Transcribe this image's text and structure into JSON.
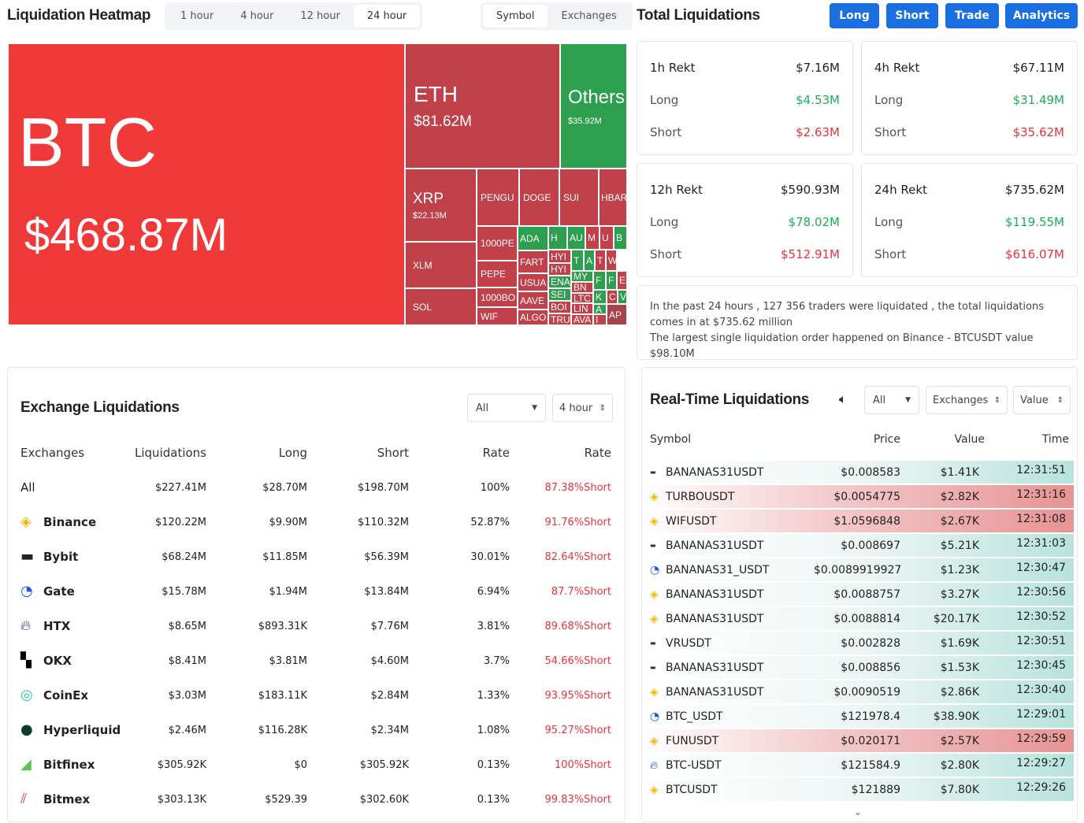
{
  "header": {
    "title": "Liquidation Heatmap",
    "timeframes": [
      "1 hour",
      "4 hour",
      "12 hour",
      "24 hour"
    ],
    "active_timeframe": "24 hour",
    "views": [
      "Symbol",
      "Exchanges"
    ],
    "active_view": "Symbol"
  },
  "total": {
    "title": "Total Liquidations",
    "buttons": [
      "Long",
      "Short",
      "Trade",
      "Analytics"
    ],
    "cards": [
      {
        "title": "1h Rekt",
        "total": "$7.16M",
        "long_label": "Long",
        "long": "$4.53M",
        "short_label": "Short",
        "short": "$2.63M"
      },
      {
        "title": "4h Rekt",
        "total": "$67.11M",
        "long_label": "Long",
        "long": "$31.49M",
        "short_label": "Short",
        "short": "$35.62M"
      },
      {
        "title": "12h Rekt",
        "total": "$590.93M",
        "long_label": "Long",
        "long": "$78.02M",
        "short_label": "Short",
        "short": "$512.91M"
      },
      {
        "title": "24h Rekt",
        "total": "$735.62M",
        "long_label": "Long",
        "long": "$119.55M",
        "short_label": "Short",
        "short": "$616.07M"
      }
    ],
    "summary1": "In the past 24 hours , 127 356 traders were liquidated , the total liquidations comes in at $735.62 million",
    "summary2": "The largest single liquidation order happened on Binance - BTCUSDT value $98.10M"
  },
  "heatmap": {
    "colors": {
      "long_dominant": "#2e9e4f",
      "short_dominant": "#c0414a",
      "btc": "#f03a3a"
    },
    "btc": {
      "label": "BTC",
      "value": "$468.87M"
    },
    "eth": {
      "label": "ETH",
      "value": "$81.62M"
    },
    "others": {
      "label": "Others",
      "value": "$35.92M"
    },
    "xrp": {
      "label": "XRP",
      "value": "$22.13M"
    },
    "cells": [
      "XLM",
      "SOL",
      "PENGU",
      "DOGE",
      "SUI",
      "HBAR",
      "1000PE",
      "PEPE",
      "1000BO",
      "WIF",
      "ADA",
      "FART",
      "USUA",
      "AAVE",
      "ALGO",
      "H",
      "AU",
      "M",
      "U",
      "B",
      "HYI",
      "HYI",
      "ENA",
      "SEI",
      "BOI",
      "TRU",
      "T",
      "A",
      "MY",
      "BN",
      "LTC",
      "LIN",
      "AVA",
      "T",
      "W",
      "F",
      "F",
      "E",
      "K",
      "C",
      "V",
      "A",
      "I",
      "AP"
    ]
  },
  "exchange": {
    "title": "Exchange Liquidations",
    "filter": "All",
    "period": "4 hour",
    "columns": [
      "Exchanges",
      "Liquidations",
      "Long",
      "Short",
      "Rate",
      "Rate"
    ],
    "rows": [
      {
        "name": "All",
        "liq": "$227.41M",
        "long": "$28.70M",
        "short": "$198.70M",
        "rate": "100%",
        "side": "87.38%Short",
        "icon": "none"
      },
      {
        "name": "Binance",
        "liq": "$120.22M",
        "long": "$9.90M",
        "short": "$110.32M",
        "rate": "52.87%",
        "side": "91.76%Short",
        "icon": "binance-icon"
      },
      {
        "name": "Bybit",
        "liq": "$68.24M",
        "long": "$11.85M",
        "short": "$56.39M",
        "rate": "30.01%",
        "side": "82.64%Short",
        "icon": "bybit-icon"
      },
      {
        "name": "Gate",
        "liq": "$15.78M",
        "long": "$1.94M",
        "short": "$13.84M",
        "rate": "6.94%",
        "side": "87.7%Short",
        "icon": "gate-icon"
      },
      {
        "name": "HTX",
        "liq": "$8.65M",
        "long": "$893.31K",
        "short": "$7.76M",
        "rate": "3.81%",
        "side": "89.68%Short",
        "icon": "htx-icon"
      },
      {
        "name": "OKX",
        "liq": "$8.41M",
        "long": "$3.81M",
        "short": "$4.60M",
        "rate": "3.7%",
        "side": "54.66%Short",
        "icon": "okx-icon"
      },
      {
        "name": "CoinEx",
        "liq": "$3.03M",
        "long": "$183.11K",
        "short": "$2.84M",
        "rate": "1.33%",
        "side": "93.95%Short",
        "icon": "coinex-icon"
      },
      {
        "name": "Hyperliquid",
        "liq": "$2.46M",
        "long": "$116.28K",
        "short": "$2.34M",
        "rate": "1.08%",
        "side": "95.27%Short",
        "icon": "hyperliquid-icon"
      },
      {
        "name": "Bitfinex",
        "liq": "$305.92K",
        "long": "$0",
        "short": "$305.92K",
        "rate": "0.13%",
        "side": "100%Short",
        "icon": "bitfinex-icon"
      },
      {
        "name": "Bitmex",
        "liq": "$303.13K",
        "long": "$529.39",
        "short": "$302.60K",
        "rate": "0.13%",
        "side": "99.83%Short",
        "icon": "bitmex-icon"
      }
    ]
  },
  "realtime": {
    "title": "Real-Time Liquidations",
    "filter": "All",
    "exchanges": "Exchanges",
    "value": "Value",
    "columns": [
      "Symbol",
      "Price",
      "Value",
      "Time"
    ],
    "rows": [
      {
        "ex": "bybit",
        "symbol": "BANANAS31USDT",
        "price": "$0.008583",
        "value": "$1.41K",
        "time": "12:31:51",
        "side": "long"
      },
      {
        "ex": "binance",
        "symbol": "TURBOUSDT",
        "price": "$0.0054775",
        "value": "$2.82K",
        "time": "12:31:16",
        "side": "short"
      },
      {
        "ex": "binance",
        "symbol": "WIFUSDT",
        "price": "$1.0596848",
        "value": "$2.67K",
        "time": "12:31:08",
        "side": "short"
      },
      {
        "ex": "bybit",
        "symbol": "BANANAS31USDT",
        "price": "$0.008697",
        "value": "$5.21K",
        "time": "12:31:03",
        "side": "long"
      },
      {
        "ex": "gate",
        "symbol": "BANANAS31_USDT",
        "price": "$0.0089919927(",
        "value": "$1.23K",
        "time": "12:30:47",
        "side": "long"
      },
      {
        "ex": "binance",
        "symbol": "BANANAS31USDT",
        "price": "$0.0088757",
        "value": "$3.27K",
        "time": "12:30:56",
        "side": "long"
      },
      {
        "ex": "binance",
        "symbol": "BANANAS31USDT",
        "price": "$0.0088814",
        "value": "$20.17K",
        "time": "12:30:52",
        "side": "long"
      },
      {
        "ex": "bybit",
        "symbol": "VRUSDT",
        "price": "$0.002828",
        "value": "$1.69K",
        "time": "12:30:51",
        "side": "long"
      },
      {
        "ex": "bybit",
        "symbol": "BANANAS31USDT",
        "price": "$0.008856",
        "value": "$1.53K",
        "time": "12:30:45",
        "side": "long"
      },
      {
        "ex": "binance",
        "symbol": "BANANAS31USDT",
        "price": "$0.0090519",
        "value": "$2.86K",
        "time": "12:30:40",
        "side": "long"
      },
      {
        "ex": "gate",
        "symbol": "BTC_USDT",
        "price": "$121978.4",
        "value": "$38.90K",
        "time": "12:29:01",
        "side": "long"
      },
      {
        "ex": "binance",
        "symbol": "FUNUSDT",
        "price": "$0.020171",
        "value": "$2.57K",
        "time": "12:29:59",
        "side": "short"
      },
      {
        "ex": "htx",
        "symbol": "BTC-USDT",
        "price": "$121584.9",
        "value": "$2.80K",
        "time": "12:29:27",
        "side": "long"
      },
      {
        "ex": "binance",
        "symbol": "BTCUSDT",
        "price": "$121889",
        "value": "$7.80K",
        "time": "12:29:26",
        "side": "long"
      }
    ]
  }
}
